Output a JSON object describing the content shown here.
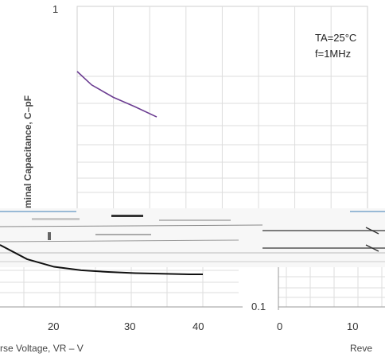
{
  "chart_data": [
    {
      "type": "line",
      "title": "",
      "ylabel": "minal Capacitance, C–pF",
      "xlabel": "rse Voltage, VR – V",
      "y_scale": "log",
      "x_tick_labels": [
        "20",
        "30",
        "40"
      ],
      "y_tick_labels": [
        "1"
      ],
      "series": [
        {
          "x": [
            23,
            25,
            28,
            31,
            34
          ],
          "y": [
            0.6,
            0.54,
            0.49,
            0.455,
            0.42
          ]
        },
        {
          "x": [
            10,
            14,
            18,
            22,
            26,
            30,
            34,
            38,
            40
          ],
          "y": [
            0.3,
            0.272,
            0.258,
            0.252,
            0.249,
            0.247,
            0.246,
            0.245,
            0.245
          ]
        }
      ]
    },
    {
      "type": "line",
      "xlabel": "Reve",
      "y_scale": "log",
      "x_tick_labels": [
        "0",
        "10"
      ],
      "y_tick_labels": [
        "0.1"
      ],
      "annotations": [
        "TA=25°C",
        "f=1MHz"
      ],
      "series": [
        {
          "x": [
            0,
            4,
            8,
            12,
            15
          ],
          "y": [
            0.36,
            0.36,
            0.36,
            0.36,
            0.35
          ]
        },
        {
          "x": [
            0,
            4,
            8,
            12,
            15
          ],
          "y": [
            0.3,
            0.3,
            0.3,
            0.3,
            0.295
          ]
        }
      ]
    }
  ]
}
